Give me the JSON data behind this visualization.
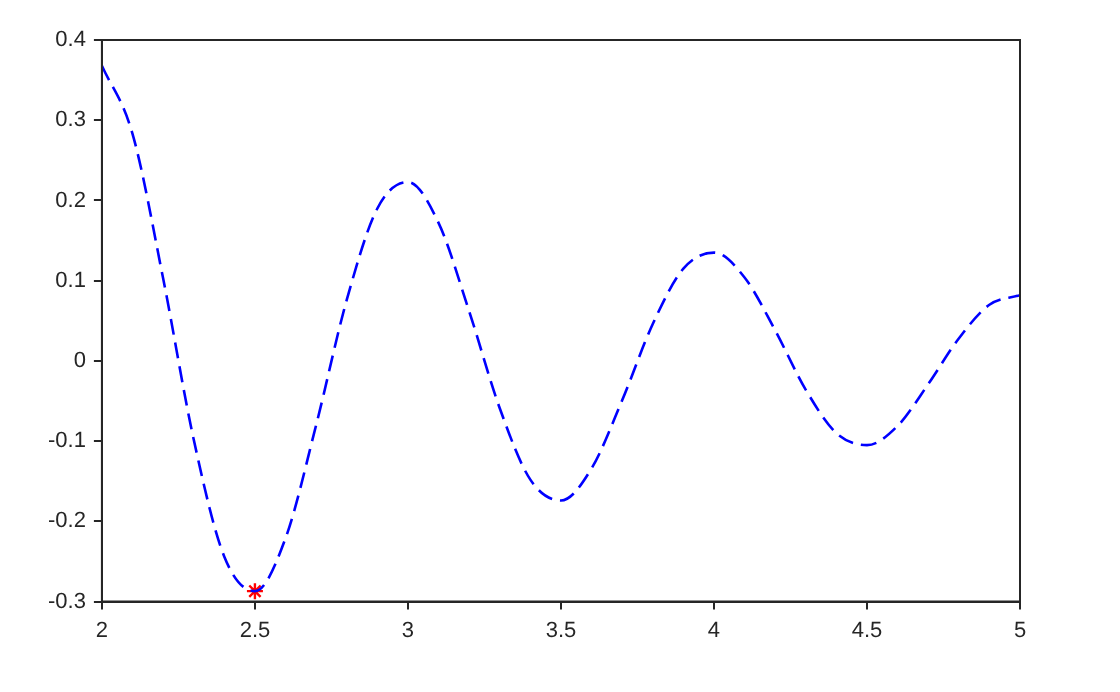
{
  "chart_data": {
    "type": "line",
    "x": [
      2.0,
      2.1,
      2.2,
      2.3,
      2.4,
      2.5,
      2.6,
      2.7,
      2.8,
      2.9,
      3.0,
      3.1,
      3.2,
      3.3,
      3.4,
      3.5,
      3.6,
      3.7,
      3.8,
      3.9,
      4.0,
      4.1,
      4.2,
      4.3,
      4.4,
      4.5,
      4.6,
      4.7,
      4.8,
      4.9,
      5.0
    ],
    "series": [
      {
        "type": "line",
        "color": "#0000ff",
        "line_style": "dashed",
        "marker": "none",
        "values": [
          0.368,
          0.283,
          0.103,
          -0.098,
          -0.244,
          -0.287,
          -0.221,
          -0.08,
          0.076,
          0.19,
          0.223,
          0.172,
          0.062,
          -0.059,
          -0.148,
          -0.174,
          -0.134,
          -0.049,
          0.046,
          0.115,
          0.135,
          0.104,
          0.038,
          -0.036,
          -0.09,
          -0.105,
          -0.081,
          -0.029,
          0.028,
          0.07,
          0.082
        ]
      },
      {
        "type": "scatter",
        "color": "#ff0000",
        "marker": "cross",
        "x": [
          2.5
        ],
        "values": [
          -0.287
        ]
      }
    ],
    "xlim": [
      2,
      5
    ],
    "xticks": [
      2,
      2.5,
      3,
      3.5,
      4,
      4.5,
      5
    ],
    "ylim": [
      -0.3,
      0.4
    ],
    "yticks": [
      -0.3,
      -0.2,
      -0.1,
      0,
      0.1,
      0.2,
      0.3,
      0.4
    ],
    "grid": false,
    "legend": false
  }
}
